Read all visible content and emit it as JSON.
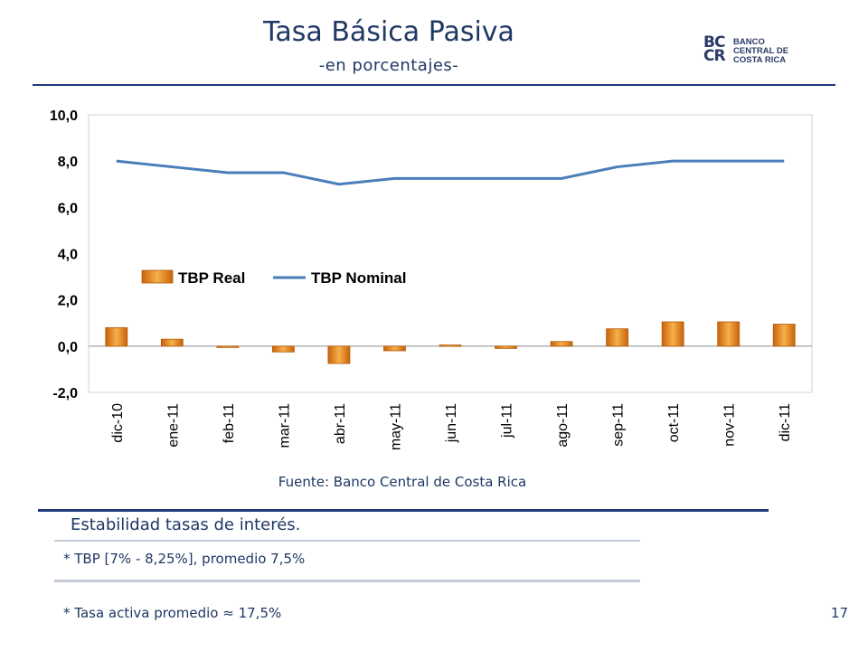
{
  "slide": {
    "title": "Tasa Básica Pasiva",
    "subtitle": "-en porcentajes-",
    "logo_mark": "BC CR",
    "logo_text": [
      "BANCO",
      "CENTRAL DE",
      "COSTA RICA"
    ],
    "source": "Fuente: Banco Central de Costa Rica",
    "heading": "Estabilidad tasas de interés.",
    "bullets": [
      "* TBP [7% - 8,25%], promedio 7,5%",
      "* Tasa activa promedio ≈ 17,5%"
    ],
    "page_number": "17"
  },
  "colors": {
    "title": "#1f3864",
    "line_series": "#4a7ebb",
    "bar_series": "#e8902b",
    "rules": "#1f3a7a"
  },
  "chart_data": {
    "type": "bar",
    "categories": [
      "dic-10",
      "ene-11",
      "feb-11",
      "mar-11",
      "abr-11",
      "may-11",
      "jun-11",
      "jul-11",
      "ago-11",
      "sep-11",
      "oct-11",
      "nov-11",
      "dic-11"
    ],
    "series": [
      {
        "name": "TBP Real",
        "type": "bar",
        "values": [
          0.8,
          0.3,
          0.0,
          -0.25,
          -0.75,
          -0.2,
          0.05,
          -0.1,
          0.2,
          0.75,
          1.05,
          1.05,
          0.95
        ]
      },
      {
        "name": "TBP Nominal",
        "type": "line",
        "values": [
          8.0,
          7.75,
          7.5,
          7.5,
          7.0,
          7.25,
          7.25,
          7.25,
          7.25,
          7.75,
          8.0,
          8.0,
          8.0
        ]
      }
    ],
    "ylim": [
      -2.0,
      10.0
    ],
    "yticks": [
      "10,0",
      "8,0",
      "6,0",
      "4,0",
      "2,0",
      "0,0",
      "-2,0"
    ],
    "ytick_values": [
      10,
      8,
      6,
      4,
      2,
      0,
      -2
    ],
    "legend": [
      "TBP Real",
      "TBP Nominal"
    ],
    "legend_position": "center",
    "grid": false
  }
}
